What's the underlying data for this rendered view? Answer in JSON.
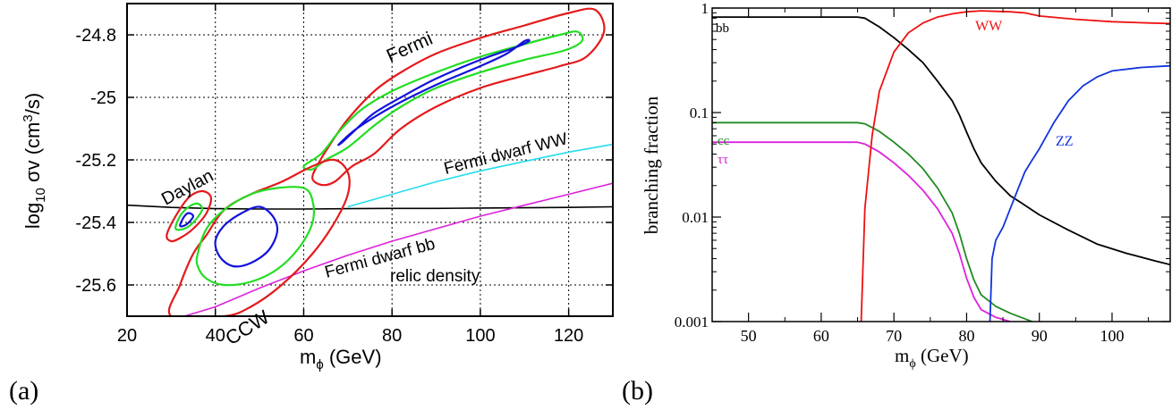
{
  "panels": [
    {
      "label": "(a)",
      "xlabel": "m",
      "xlabel_sub": "ϕ",
      "xlabel_unit": " (GeV)",
      "ylabel_pre": "log",
      "ylabel_sub": "10",
      "ylabel_mid": " σv (cm",
      "ylabel_sup": "3",
      "ylabel_post": "/s)"
    },
    {
      "label": "(b)",
      "xlabel": "m",
      "xlabel_sub": "ϕ",
      "xlabel_unit": " (GeV)",
      "ylabel": "branching fraction"
    }
  ],
  "chart_data": [
    {
      "type": "line",
      "xlim": [
        20,
        130
      ],
      "ylim": [
        -25.7,
        -24.7
      ],
      "xticks": [
        20,
        40,
        60,
        80,
        100,
        120
      ],
      "yticks": [
        -24.8,
        -25,
        -25.2,
        -25.4,
        -25.6
      ],
      "ytick_labels": [
        "-24.8",
        "-25",
        "-25.2",
        "-25.4",
        "-25.6"
      ],
      "grid": true,
      "colors": {
        "red": "#e41a1c",
        "green": "#22dd22",
        "blue": "#1111dd",
        "black": "#000000",
        "cyan": "#22ddee",
        "magenta": "#dd22dd"
      },
      "series": [
        {
          "name": "relic density",
          "color": "black",
          "x": [
            20,
            30,
            40,
            50,
            60,
            70,
            80,
            90,
            100,
            110,
            120,
            130
          ],
          "y": [
            -25.345,
            -25.352,
            -25.356,
            -25.357,
            -25.357,
            -25.356,
            -25.355,
            -25.355,
            -25.354,
            -25.353,
            -25.352,
            -25.35
          ]
        },
        {
          "name": "Fermi dwarf WW",
          "color": "cyan",
          "x": [
            70,
            80,
            90,
            100,
            110,
            120,
            130
          ],
          "y": [
            -25.35,
            -25.31,
            -25.27,
            -25.235,
            -25.205,
            -25.175,
            -25.15
          ]
        },
        {
          "name": "Fermi dwarf bb",
          "color": "magenta",
          "x": [
            33,
            40,
            50,
            60,
            70,
            80,
            90,
            100,
            110,
            120,
            130
          ],
          "y": [
            -25.7,
            -25.67,
            -25.61,
            -25.555,
            -25.505,
            -25.46,
            -25.42,
            -25.38,
            -25.345,
            -25.31,
            -25.275
          ]
        }
      ],
      "contours": [
        {
          "region": "Fermi",
          "color": "red",
          "points": [
            [
              63,
              -25.22
            ],
            [
              66,
              -25.15
            ],
            [
              70,
              -25.07
            ],
            [
              76,
              -24.98
            ],
            [
              82,
              -24.92
            ],
            [
              90,
              -24.86
            ],
            [
              100,
              -24.81
            ],
            [
              110,
              -24.77
            ],
            [
              120,
              -24.73
            ],
            [
              126,
              -24.72
            ],
            [
              128,
              -24.79
            ],
            [
              124,
              -24.87
            ],
            [
              118,
              -24.9
            ],
            [
              110,
              -24.93
            ],
            [
              100,
              -24.97
            ],
            [
              90,
              -25.03
            ],
            [
              82,
              -25.1
            ],
            [
              76,
              -25.18
            ],
            [
              71,
              -25.22
            ],
            [
              67,
              -25.27
            ],
            [
              64,
              -25.28
            ],
            [
              62,
              -25.26
            ]
          ]
        },
        {
          "region": "Fermi",
          "color": "green",
          "points": [
            [
              60,
              -25.22
            ],
            [
              64,
              -25.18
            ],
            [
              68,
              -25.11
            ],
            [
              73,
              -25.04
            ],
            [
              80,
              -24.98
            ],
            [
              90,
              -24.92
            ],
            [
              100,
              -24.87
            ],
            [
              110,
              -24.83
            ],
            [
              118,
              -24.8
            ],
            [
              122,
              -24.79
            ],
            [
              123,
              -24.82
            ],
            [
              119,
              -24.85
            ],
            [
              110,
              -24.88
            ],
            [
              100,
              -24.92
            ],
            [
              90,
              -24.97
            ],
            [
              82,
              -25.03
            ],
            [
              76,
              -25.09
            ],
            [
              70,
              -25.16
            ],
            [
              65,
              -25.2
            ],
            [
              62,
              -25.23
            ]
          ]
        },
        {
          "region": "Fermi",
          "color": "blue",
          "points": [
            [
              68,
              -25.15
            ],
            [
              72,
              -25.1
            ],
            [
              80,
              -25.03
            ],
            [
              90,
              -24.96
            ],
            [
              100,
              -24.9
            ],
            [
              106,
              -24.86
            ],
            [
              110,
              -24.82
            ],
            [
              111,
              -24.82
            ],
            [
              108,
              -24.84
            ],
            [
              100,
              -24.88
            ],
            [
              90,
              -24.94
            ],
            [
              82,
              -25
            ],
            [
              76,
              -25.05
            ],
            [
              72,
              -25.1
            ],
            [
              69,
              -25.14
            ]
          ]
        },
        {
          "region": "CCW",
          "color": "red",
          "points": [
            [
              30,
              -25.7
            ],
            [
              32,
              -25.6
            ],
            [
              35,
              -25.5
            ],
            [
              38,
              -25.44
            ],
            [
              42,
              -25.36
            ],
            [
              48,
              -25.31
            ],
            [
              55,
              -25.27
            ],
            [
              62,
              -25.22
            ],
            [
              67,
              -25.2
            ],
            [
              70,
              -25.24
            ],
            [
              70,
              -25.31
            ],
            [
              67,
              -25.4
            ],
            [
              62,
              -25.5
            ],
            [
              55,
              -25.6
            ],
            [
              48,
              -25.67
            ],
            [
              42,
              -25.7
            ]
          ]
        },
        {
          "region": "CCW",
          "color": "green",
          "points": [
            [
              36,
              -25.5
            ],
            [
              38,
              -25.42
            ],
            [
              42,
              -25.36
            ],
            [
              48,
              -25.31
            ],
            [
              54,
              -25.29
            ],
            [
              60,
              -25.29
            ],
            [
              62,
              -25.33
            ],
            [
              62,
              -25.4
            ],
            [
              59,
              -25.48
            ],
            [
              54,
              -25.55
            ],
            [
              48,
              -25.59
            ],
            [
              42,
              -25.6
            ],
            [
              38,
              -25.58
            ],
            [
              36,
              -25.54
            ]
          ]
        },
        {
          "region": "CCW",
          "color": "blue",
          "points": [
            [
              40,
              -25.46
            ],
            [
              42,
              -25.41
            ],
            [
              46,
              -25.37
            ],
            [
              50,
              -25.35
            ],
            [
              53,
              -25.38
            ],
            [
              54,
              -25.43
            ],
            [
              52,
              -25.49
            ],
            [
              48,
              -25.53
            ],
            [
              44,
              -25.54
            ],
            [
              41,
              -25.51
            ]
          ]
        },
        {
          "region": "Daylan",
          "color": "red",
          "points": [
            [
              29,
              -25.44
            ],
            [
              31,
              -25.38
            ],
            [
              34,
              -25.32
            ],
            [
              37,
              -25.3
            ],
            [
              39,
              -25.32
            ],
            [
              38,
              -25.37
            ],
            [
              35,
              -25.42
            ],
            [
              32,
              -25.45
            ],
            [
              30,
              -25.46
            ]
          ]
        },
        {
          "region": "Daylan",
          "color": "green",
          "points": [
            [
              31,
              -25.42
            ],
            [
              32,
              -25.38
            ],
            [
              34,
              -25.35
            ],
            [
              36,
              -25.34
            ],
            [
              37,
              -25.36
            ],
            [
              35,
              -25.4
            ],
            [
              33,
              -25.42
            ]
          ]
        },
        {
          "region": "Daylan",
          "color": "blue",
          "points": [
            [
              32,
              -25.41
            ],
            [
              33,
              -25.38
            ],
            [
              34,
              -25.37
            ],
            [
              35,
              -25.38
            ],
            [
              34,
              -25.4
            ],
            [
              33,
              -25.41
            ]
          ]
        }
      ],
      "annotations": [
        "Fermi",
        "Daylan",
        "CCW",
        "relic density",
        "Fermi dwarf WW",
        "Fermi dwarf bb"
      ]
    },
    {
      "type": "line",
      "xlim": [
        45,
        108
      ],
      "ylim": [
        0.001,
        1
      ],
      "yscale": "log",
      "xticks": [
        50,
        60,
        70,
        80,
        90,
        100
      ],
      "yticks": [
        0.001,
        0.01,
        0.1,
        1
      ],
      "ytick_labels": [
        "0.001",
        "0.01",
        "0.1",
        "1"
      ],
      "grid": false,
      "series": [
        {
          "name": "bb",
          "color": "#000000",
          "x": [
            45,
            55,
            65,
            66,
            68,
            70,
            72,
            74,
            76,
            78,
            79,
            80,
            81,
            82,
            84,
            86,
            88,
            90,
            94,
            98,
            102,
            106,
            108
          ],
          "y": [
            0.82,
            0.82,
            0.82,
            0.8,
            0.66,
            0.52,
            0.4,
            0.3,
            0.2,
            0.13,
            0.095,
            0.065,
            0.045,
            0.033,
            0.022,
            0.016,
            0.013,
            0.0105,
            0.0075,
            0.0055,
            0.0045,
            0.0038,
            0.0035
          ]
        },
        {
          "name": "cc",
          "color": "#228b22",
          "x": [
            45,
            55,
            65,
            66,
            68,
            70,
            72,
            74,
            76,
            78,
            79,
            80,
            81,
            82,
            84,
            86,
            89
          ],
          "y": [
            0.08,
            0.08,
            0.08,
            0.078,
            0.066,
            0.052,
            0.04,
            0.029,
            0.019,
            0.011,
            0.007,
            0.004,
            0.0025,
            0.0018,
            0.0014,
            0.0012,
            0.001
          ]
        },
        {
          "name": "ττ",
          "color": "#dd22dd",
          "x": [
            45,
            55,
            65,
            66,
            68,
            70,
            72,
            74,
            76,
            78,
            79,
            80,
            81,
            82,
            84,
            86
          ],
          "y": [
            0.052,
            0.052,
            0.052,
            0.05,
            0.042,
            0.033,
            0.025,
            0.018,
            0.012,
            0.007,
            0.0045,
            0.0026,
            0.0017,
            0.0013,
            0.0011,
            0.001
          ]
        },
        {
          "name": "WW",
          "color": "#ee1111",
          "x": [
            65.5,
            66,
            67,
            68,
            70,
            72,
            74,
            76,
            78,
            80,
            82,
            84,
            86,
            88,
            90,
            95,
            100,
            105,
            108
          ],
          "y": [
            0.001,
            0.012,
            0.06,
            0.16,
            0.38,
            0.58,
            0.72,
            0.82,
            0.88,
            0.92,
            0.94,
            0.93,
            0.92,
            0.9,
            0.84,
            0.78,
            0.74,
            0.72,
            0.71
          ]
        },
        {
          "name": "ZZ",
          "color": "#1133dd",
          "x": [
            83.2,
            83.5,
            84,
            85,
            86,
            87,
            88,
            89,
            90,
            92,
            94,
            96,
            98,
            100,
            104,
            108
          ],
          "y": [
            0.001,
            0.004,
            0.006,
            0.008,
            0.012,
            0.018,
            0.027,
            0.035,
            0.045,
            0.08,
            0.13,
            0.18,
            0.22,
            0.25,
            0.27,
            0.28
          ]
        }
      ]
    }
  ]
}
